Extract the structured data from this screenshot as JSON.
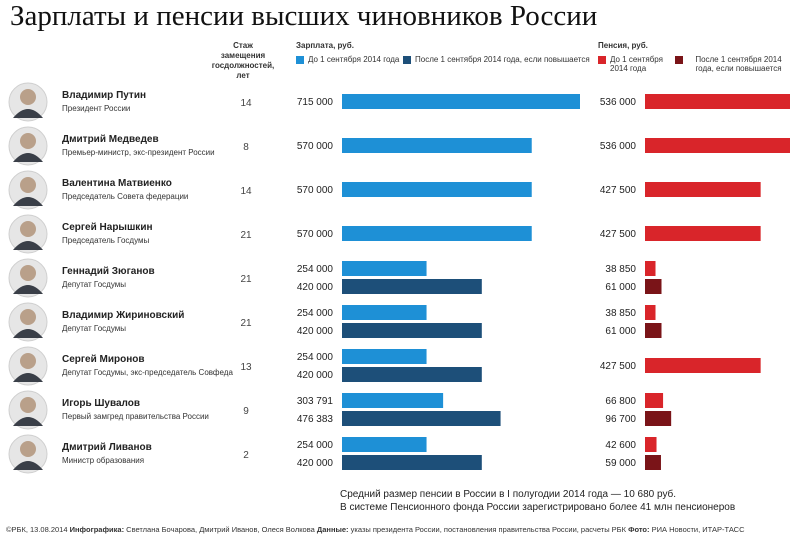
{
  "title": "Зарплаты и пенсии высших чиновников России",
  "headers": {
    "experience": "Стаж замещения госдолжностей, лет",
    "salary": "Зарплата, руб.",
    "pension": "Пенсия, руб."
  },
  "legend": {
    "salary_before": "До 1 сентября 2014 года",
    "salary_after": "После 1 сентября 2014 года, если повышается",
    "pension_before": "До 1 сентября 2014 года",
    "pension_after": "После 1 сентября 2014 года, если повышается"
  },
  "colors": {
    "salary_before": "#1e90d6",
    "salary_after": "#1d4f79",
    "pension_before": "#d9252a",
    "pension_after": "#7a1418"
  },
  "chart_data": {
    "type": "bar",
    "orientation": "horizontal",
    "categories": [
      "Владимир Путин",
      "Дмитрий Медведев",
      "Валентина Матвиенко",
      "Сергей Нарышкин",
      "Геннадий Зюганов",
      "Владимир Жириновский",
      "Сергей Миронов",
      "Игорь Шувалов",
      "Дмитрий Ливанов"
    ],
    "people": [
      {
        "name": "Владимир Путин",
        "position": "Президент России",
        "experience": "14",
        "salary_before": 715000,
        "salary_before_label": "715 000",
        "salary_after": null,
        "salary_after_label": null,
        "pension_before": 536000,
        "pension_before_label": "536 000",
        "pension_after": null,
        "pension_after_label": null
      },
      {
        "name": "Дмитрий Медведев",
        "position": "Премьер-министр, экс-президент России",
        "experience": "8",
        "salary_before": 570000,
        "salary_before_label": "570 000",
        "salary_after": null,
        "salary_after_label": null,
        "pension_before": 536000,
        "pension_before_label": "536 000",
        "pension_after": null,
        "pension_after_label": null
      },
      {
        "name": "Валентина Матвиенко",
        "position": "Председатель Совета федерации",
        "experience": "14",
        "salary_before": 570000,
        "salary_before_label": "570 000",
        "salary_after": null,
        "salary_after_label": null,
        "pension_before": 427500,
        "pension_before_label": "427 500",
        "pension_after": null,
        "pension_after_label": null
      },
      {
        "name": "Сергей Нарышкин",
        "position": "Председатель Госдумы",
        "experience": "21",
        "salary_before": 570000,
        "salary_before_label": "570 000",
        "salary_after": null,
        "salary_after_label": null,
        "pension_before": 427500,
        "pension_before_label": "427 500",
        "pension_after": null,
        "pension_after_label": null
      },
      {
        "name": "Геннадий Зюганов",
        "position": "Депутат Госдумы",
        "experience": "21",
        "salary_before": 254000,
        "salary_before_label": "254 000",
        "salary_after": 420000,
        "salary_after_label": "420 000",
        "pension_before": 38850,
        "pension_before_label": "38 850",
        "pension_after": 61000,
        "pension_after_label": "61 000"
      },
      {
        "name": "Владимир Жириновский",
        "position": "Депутат Госдумы",
        "experience": "21",
        "salary_before": 254000,
        "salary_before_label": "254 000",
        "salary_after": 420000,
        "salary_after_label": "420 000",
        "pension_before": 38850,
        "pension_before_label": "38 850",
        "pension_after": 61000,
        "pension_after_label": "61 000"
      },
      {
        "name": "Сергей Миронов",
        "position": "Депутат Госдумы, экс-председатель Совфеда",
        "experience": "13",
        "salary_before": 254000,
        "salary_before_label": "254 000",
        "salary_after": 420000,
        "salary_after_label": "420 000",
        "pension_before": 427500,
        "pension_before_label": "427 500",
        "pension_after": null,
        "pension_after_label": null
      },
      {
        "name": "Игорь Шувалов",
        "position": "Первый замгред правительства России",
        "experience": "9",
        "salary_before": 303791,
        "salary_before_label": "303 791",
        "salary_after": 476383,
        "salary_after_label": "476 383",
        "pension_before": 66800,
        "pension_before_label": "66 800",
        "pension_after": 96700,
        "pension_after_label": "96 700"
      },
      {
        "name": "Дмитрий Ливанов",
        "position": "Министр образования",
        "experience": "2",
        "salary_before": 254000,
        "salary_before_label": "254 000",
        "salary_after": 420000,
        "salary_after_label": "420 000",
        "pension_before": 42600,
        "pension_before_label": "42 600",
        "pension_after": 59000,
        "pension_after_label": "59 000"
      }
    ]
  },
  "footer": {
    "line1": "Средний размер пенсии в России в I полугодии 2014 года — 10 680 руб.",
    "line2": "В системе Пенсионного фонда России зарегистрировано более 41 млн пенсионеров"
  },
  "credits": {
    "source_prefix": "©РБК, 13.08.2014",
    "infographic_label": "Инфографика:",
    "infographic_authors": "Светлана Бочарова, Дмитрий Иванов, Олеся Волкова",
    "data_label": "Данные:",
    "data_sources": "указы президента России, постановления правительства России, расчеты РБК",
    "photo_label": "Фото:",
    "photo_sources": "РИА Новости, ИТАР-ТАСС"
  }
}
